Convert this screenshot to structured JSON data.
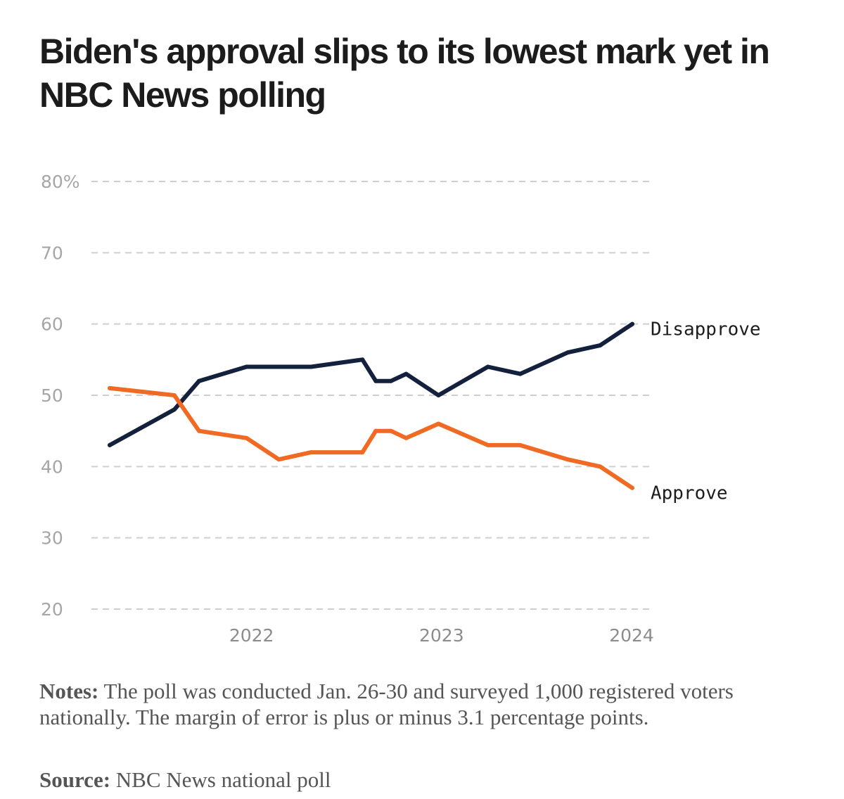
{
  "chart_data": {
    "type": "line",
    "title": "Biden's approval slips to its lowest mark yet in NBC News polling",
    "xlabel": "",
    "ylabel": "",
    "ylim": [
      20,
      80
    ],
    "y_ticks": [
      20,
      30,
      40,
      50,
      60,
      70,
      80
    ],
    "y_tick_labels": [
      "20",
      "30",
      "40",
      "50",
      "60",
      "70",
      "80%"
    ],
    "xlim": [
      2021.25,
      2024.0
    ],
    "x_ticks": [
      2022,
      2023,
      2024
    ],
    "x_tick_labels": [
      "2022",
      "2023",
      "2024"
    ],
    "grid": true,
    "series": [
      {
        "name": "Disapprove",
        "color": "#14213d",
        "points": [
          {
            "x": 2021.25,
            "y": 43
          },
          {
            "x": 2021.59,
            "y": 48
          },
          {
            "x": 2021.72,
            "y": 52
          },
          {
            "x": 2021.97,
            "y": 54
          },
          {
            "x": 2022.31,
            "y": 54
          },
          {
            "x": 2022.58,
            "y": 55
          },
          {
            "x": 2022.65,
            "y": 52
          },
          {
            "x": 2022.73,
            "y": 52
          },
          {
            "x": 2022.81,
            "y": 53
          },
          {
            "x": 2022.98,
            "y": 50
          },
          {
            "x": 2023.24,
            "y": 54
          },
          {
            "x": 2023.41,
            "y": 53
          },
          {
            "x": 2023.66,
            "y": 56
          },
          {
            "x": 2023.83,
            "y": 57
          },
          {
            "x": 2024.0,
            "y": 60
          }
        ]
      },
      {
        "name": "Approve",
        "color": "#f06a24",
        "points": [
          {
            "x": 2021.25,
            "y": 51
          },
          {
            "x": 2021.59,
            "y": 50
          },
          {
            "x": 2021.72,
            "y": 45
          },
          {
            "x": 2021.97,
            "y": 44
          },
          {
            "x": 2022.14,
            "y": 41
          },
          {
            "x": 2022.31,
            "y": 42
          },
          {
            "x": 2022.58,
            "y": 42
          },
          {
            "x": 2022.65,
            "y": 45
          },
          {
            "x": 2022.73,
            "y": 45
          },
          {
            "x": 2022.81,
            "y": 44
          },
          {
            "x": 2022.98,
            "y": 46
          },
          {
            "x": 2023.24,
            "y": 43
          },
          {
            "x": 2023.41,
            "y": 43
          },
          {
            "x": 2023.66,
            "y": 41
          },
          {
            "x": 2023.83,
            "y": 40
          },
          {
            "x": 2024.0,
            "y": 37
          }
        ]
      }
    ]
  },
  "notes": {
    "label": "Notes:",
    "text": " The poll was conducted Jan. 26-30 and surveyed 1,000 registered voters nationally. The margin of error is plus or minus 3.1 percentage points."
  },
  "source": {
    "label": "Source:",
    "text": " NBC News national poll"
  }
}
